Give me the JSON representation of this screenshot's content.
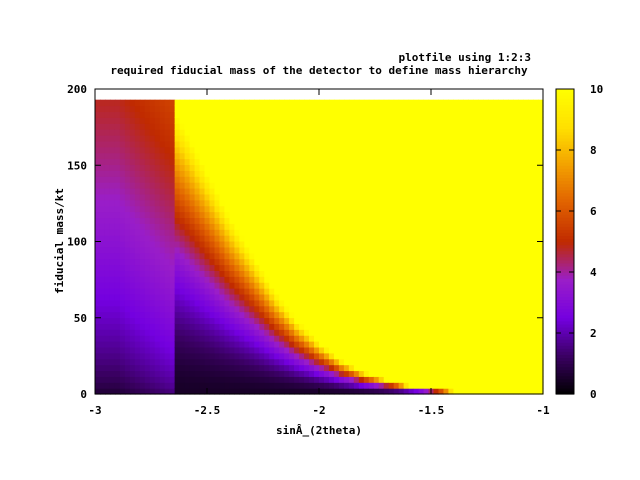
{
  "chart_data": {
    "type": "heatmap",
    "plot_key": "plotfile using 1:2:3",
    "title": "required fiducial mass of the detector to define mass hierarchy",
    "xlabel": "sinÂ_(2theta)",
    "ylabel": "fiducial mass/kt",
    "xlim": [
      -3,
      -1
    ],
    "ylim": [
      0,
      200
    ],
    "zlim": [
      0,
      10
    ],
    "x_ticks": [
      -3,
      -2.5,
      -2,
      -1.5,
      -1
    ],
    "y_ticks": [
      0,
      50,
      100,
      150,
      200
    ],
    "cb_ticks": [
      0,
      2,
      4,
      6,
      8,
      10
    ],
    "x_tick_labels": [
      "-3",
      "-2.5",
      "-2",
      "-1.5",
      "-1"
    ],
    "y_tick_labels": [
      "0",
      "50",
      "100",
      "150",
      "200"
    ],
    "cb_tick_labels": [
      "0",
      "2",
      "4",
      "6",
      "8",
      "10"
    ],
    "data_ymax": 193,
    "palette": [
      "#000000",
      "#3a0062",
      "#7400e0",
      "#9a1ec8",
      "#c02a00",
      "#e06000",
      "#f3a000",
      "#ffe000",
      "#ffff00"
    ],
    "saturation_contour": {
      "x": [
        -2.65,
        -2.6,
        -2.5,
        -2.4,
        -2.3,
        -2.2,
        -2.1,
        -2.0,
        -1.9,
        -1.8,
        -1.7,
        -1.6,
        -1.5,
        -1.4,
        -1.3
      ],
      "y": [
        193,
        180,
        150,
        120,
        95,
        70,
        50,
        35,
        23,
        15,
        10,
        6,
        3.5,
        2,
        0
      ]
    },
    "grid": false,
    "legend": "colorbar-right"
  }
}
